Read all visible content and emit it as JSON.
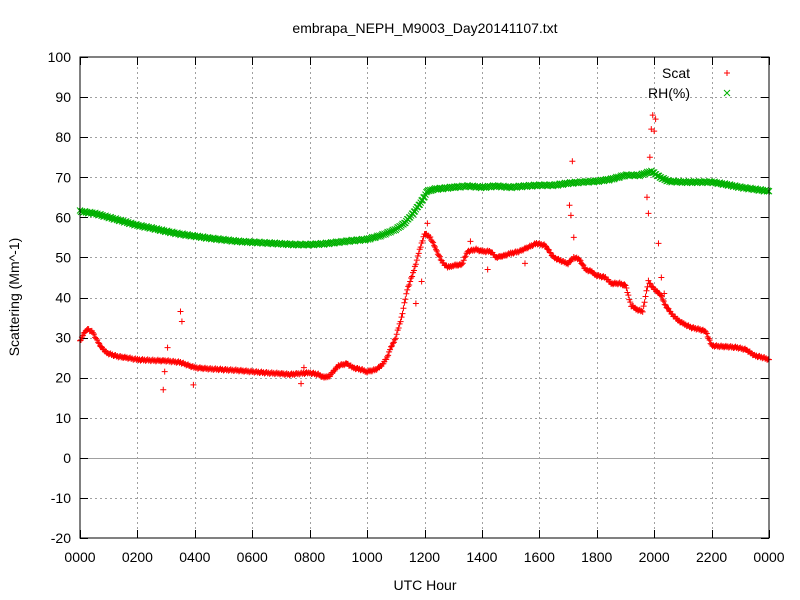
{
  "chart_data": {
    "type": "scatter",
    "title": "embrapa_NEPH_M9003_Day20141107.txt",
    "xlabel": "UTC Hour",
    "ylabel": "Scattering (Mm^-1)",
    "xlim": [
      0,
      24
    ],
    "ylim": [
      -20,
      100
    ],
    "x_ticks": [
      0,
      2,
      4,
      6,
      8,
      10,
      12,
      14,
      16,
      18,
      20,
      22,
      24
    ],
    "x_tick_labels": [
      "0000",
      "0200",
      "0400",
      "0600",
      "0800",
      "1000",
      "1200",
      "1400",
      "1600",
      "1800",
      "2000",
      "2200",
      "0000"
    ],
    "y_ticks": [
      -20,
      -10,
      0,
      10,
      20,
      30,
      40,
      50,
      60,
      70,
      80,
      90,
      100
    ],
    "grid": true,
    "legend_position": "top-right",
    "zero_line": true,
    "series": [
      {
        "name": "Scat",
        "marker": "plus",
        "color": "#ff0000",
        "points": [
          [
            0,
            29
          ],
          [
            0.1,
            30.5
          ],
          [
            0.2,
            31.8
          ],
          [
            0.3,
            32
          ],
          [
            0.45,
            31.3
          ],
          [
            0.6,
            29.2
          ],
          [
            0.8,
            27
          ],
          [
            1,
            26
          ],
          [
            1.3,
            25.3
          ],
          [
            1.6,
            25
          ],
          [
            2,
            24.5
          ],
          [
            2.5,
            24.3
          ],
          [
            3,
            24.2
          ],
          [
            3.5,
            23.8
          ],
          [
            3.8,
            23
          ],
          [
            4,
            22.5
          ],
          [
            4.5,
            22.2
          ],
          [
            5,
            22
          ],
          [
            5.5,
            21.8
          ],
          [
            6,
            21.5
          ],
          [
            6.5,
            21.2
          ],
          [
            7,
            21
          ],
          [
            7.3,
            20.8
          ],
          [
            7.6,
            21
          ],
          [
            8,
            21.2
          ],
          [
            8.3,
            20.8
          ],
          [
            8.5,
            20
          ],
          [
            8.7,
            20.5
          ],
          [
            9,
            23
          ],
          [
            9.3,
            23.5
          ],
          [
            9.5,
            22.5
          ],
          [
            9.8,
            22
          ],
          [
            10,
            21.5
          ],
          [
            10.3,
            22
          ],
          [
            10.5,
            23
          ],
          [
            10.7,
            25
          ],
          [
            10.8,
            27
          ],
          [
            11,
            30
          ],
          [
            11.2,
            35
          ],
          [
            11.4,
            42
          ],
          [
            11.6,
            46
          ],
          [
            11.8,
            51
          ],
          [
            12,
            56
          ],
          [
            12.2,
            55
          ],
          [
            12.4,
            52
          ],
          [
            12.6,
            49
          ],
          [
            12.8,
            47.5
          ],
          [
            13,
            48
          ],
          [
            13.3,
            48.2
          ],
          [
            13.5,
            51.5
          ],
          [
            13.8,
            52
          ],
          [
            14,
            51.5
          ],
          [
            14.3,
            51.5
          ],
          [
            14.5,
            50
          ],
          [
            14.8,
            50.5
          ],
          [
            15,
            51
          ],
          [
            15.3,
            51.5
          ],
          [
            15.6,
            52.5
          ],
          [
            15.9,
            53.5
          ],
          [
            16.2,
            53
          ],
          [
            16.5,
            50
          ],
          [
            16.8,
            49
          ],
          [
            17,
            48.5
          ],
          [
            17.2,
            50
          ],
          [
            17.4,
            49.5
          ],
          [
            17.6,
            47
          ],
          [
            17.8,
            46.5
          ],
          [
            18,
            45.5
          ],
          [
            18.3,
            45
          ],
          [
            18.5,
            43.5
          ],
          [
            18.8,
            43.5
          ],
          [
            19,
            43
          ],
          [
            19.2,
            38
          ],
          [
            19.4,
            37
          ],
          [
            19.6,
            36.5
          ],
          [
            19.8,
            44
          ],
          [
            20,
            42
          ],
          [
            20.2,
            41
          ],
          [
            20.4,
            38
          ],
          [
            20.6,
            36
          ],
          [
            20.8,
            34.5
          ],
          [
            21,
            33.5
          ],
          [
            21.3,
            32.5
          ],
          [
            21.6,
            32
          ],
          [
            21.8,
            31.5
          ],
          [
            22,
            28
          ],
          [
            22.3,
            27.8
          ],
          [
            22.6,
            27.7
          ],
          [
            22.9,
            27.5
          ],
          [
            23.2,
            27
          ],
          [
            23.5,
            25.5
          ],
          [
            23.8,
            25
          ],
          [
            24,
            24.5
          ]
        ],
        "outliers": [
          [
            2.9,
            17
          ],
          [
            2.95,
            21.5
          ],
          [
            3.05,
            27.5
          ],
          [
            3.5,
            36.5
          ],
          [
            3.55,
            34
          ],
          [
            3.95,
            18.2
          ],
          [
            7.7,
            18.5
          ],
          [
            7.8,
            22.5
          ],
          [
            11.7,
            38.5
          ],
          [
            11.9,
            44
          ],
          [
            12.1,
            58.5
          ],
          [
            13.6,
            54
          ],
          [
            14.2,
            47
          ],
          [
            15.5,
            48.5
          ],
          [
            17.05,
            63
          ],
          [
            17.1,
            60.5
          ],
          [
            17.15,
            74
          ],
          [
            17.2,
            55
          ],
          [
            19.75,
            65
          ],
          [
            19.8,
            61
          ],
          [
            19.85,
            75
          ],
          [
            19.9,
            82
          ],
          [
            19.95,
            85.5
          ],
          [
            20,
            81.5
          ],
          [
            20.05,
            84.5
          ],
          [
            20.15,
            53.5
          ],
          [
            20.25,
            45
          ],
          [
            20.35,
            41
          ]
        ]
      },
      {
        "name": "RH(%)",
        "marker": "cross",
        "color": "#00b000",
        "points": [
          [
            0,
            61.5
          ],
          [
            0.5,
            61
          ],
          [
            1,
            60
          ],
          [
            1.5,
            59
          ],
          [
            2,
            58
          ],
          [
            2.5,
            57.3
          ],
          [
            3,
            56.5
          ],
          [
            3.5,
            55.8
          ],
          [
            4,
            55.3
          ],
          [
            4.5,
            54.8
          ],
          [
            5,
            54.4
          ],
          [
            5.5,
            54
          ],
          [
            6,
            53.8
          ],
          [
            6.5,
            53.6
          ],
          [
            7,
            53.4
          ],
          [
            7.5,
            53.2
          ],
          [
            8,
            53.2
          ],
          [
            8.5,
            53.4
          ],
          [
            9,
            53.8
          ],
          [
            9.5,
            54.2
          ],
          [
            10,
            54.5
          ],
          [
            10.5,
            55.5
          ],
          [
            11,
            57
          ],
          [
            11.3,
            58.5
          ],
          [
            11.6,
            61
          ],
          [
            11.9,
            64
          ],
          [
            12.1,
            66.5
          ],
          [
            12.3,
            67
          ],
          [
            12.6,
            67.2
          ],
          [
            13,
            67.5
          ],
          [
            13.5,
            67.8
          ],
          [
            14,
            67.5
          ],
          [
            14.5,
            67.8
          ],
          [
            15,
            67.5
          ],
          [
            15.5,
            67.8
          ],
          [
            16,
            68
          ],
          [
            16.5,
            68
          ],
          [
            17,
            68.5
          ],
          [
            17.5,
            68.8
          ],
          [
            18,
            69
          ],
          [
            18.5,
            69.5
          ],
          [
            19,
            70.5
          ],
          [
            19.5,
            70.5
          ],
          [
            19.9,
            71.5
          ],
          [
            20.2,
            70
          ],
          [
            20.5,
            69
          ],
          [
            21,
            68.8
          ],
          [
            21.5,
            68.8
          ],
          [
            22,
            68.8
          ],
          [
            22.5,
            68.2
          ],
          [
            23,
            67.5
          ],
          [
            23.5,
            67
          ],
          [
            24,
            66.5
          ]
        ]
      }
    ]
  }
}
